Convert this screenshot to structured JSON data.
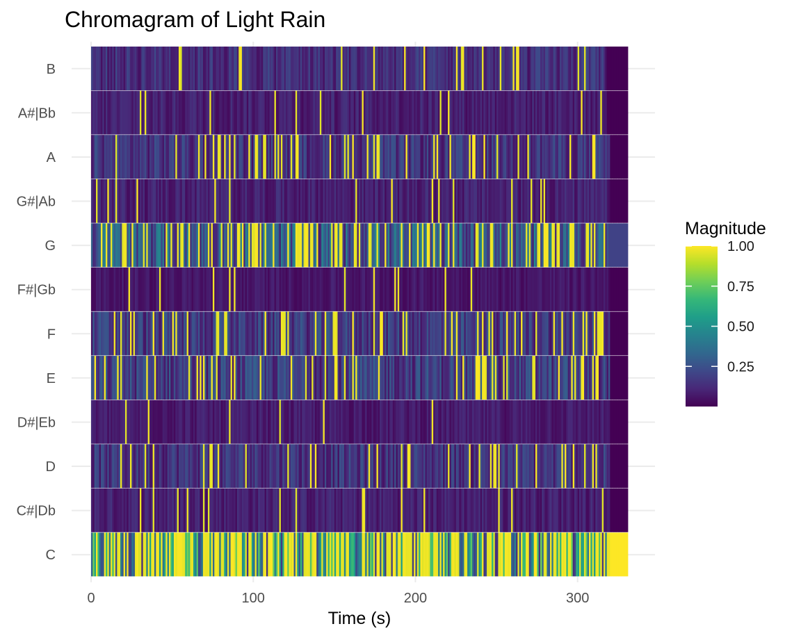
{
  "chart_data": {
    "type": "heatmap",
    "title": "Chromagram of Light Rain",
    "xlabel": "Time (s)",
    "ylabel": "",
    "xlim": [
      0,
      331
    ],
    "x_ticks": [
      0,
      100,
      200,
      300
    ],
    "y_categories": [
      "C",
      "C#|Db",
      "D",
      "D#|Eb",
      "E",
      "F",
      "F#|Gb",
      "G",
      "G#|Ab",
      "A",
      "A#|Bb",
      "B"
    ],
    "colorscale": "viridis",
    "grid": true,
    "legend": {
      "title": "Magnitude",
      "placement": "right",
      "range": [
        0.0,
        1.0
      ],
      "ticks": [
        0.25,
        0.5,
        0.75,
        1.0
      ],
      "tick_labels": [
        "0.25",
        "0.50",
        "0.75",
        "1.00"
      ]
    },
    "pitch_profiles": [
      {
        "pitch": "C",
        "mean_magnitude": 0.75,
        "bright_share": 0.55,
        "active_until": 320,
        "tail_value": 1.0
      },
      {
        "pitch": "C#|Db",
        "mean_magnitude": 0.15,
        "bright_share": 0.03,
        "active_until": 320,
        "tail_value": 0.0
      },
      {
        "pitch": "D",
        "mean_magnitude": 0.25,
        "bright_share": 0.12,
        "active_until": 320,
        "tail_value": 0.0
      },
      {
        "pitch": "D#|Eb",
        "mean_magnitude": 0.12,
        "bright_share": 0.02,
        "active_until": 320,
        "tail_value": 0.0
      },
      {
        "pitch": "E",
        "mean_magnitude": 0.3,
        "bright_share": 0.15,
        "active_until": 320,
        "tail_value": 0.0
      },
      {
        "pitch": "F",
        "mean_magnitude": 0.28,
        "bright_share": 0.14,
        "active_until": 320,
        "tail_value": 0.0
      },
      {
        "pitch": "F#|Gb",
        "mean_magnitude": 0.1,
        "bright_share": 0.02,
        "active_until": 320,
        "tail_value": 0.0
      },
      {
        "pitch": "G",
        "mean_magnitude": 0.45,
        "bright_share": 0.3,
        "active_until": 319,
        "tail_value": 0.2
      },
      {
        "pitch": "G#|Ab",
        "mean_magnitude": 0.15,
        "bright_share": 0.03,
        "active_until": 320,
        "tail_value": 0.0
      },
      {
        "pitch": "A",
        "mean_magnitude": 0.25,
        "bright_share": 0.13,
        "active_until": 320,
        "tail_value": 0.0
      },
      {
        "pitch": "A#|Bb",
        "mean_magnitude": 0.15,
        "bright_share": 0.03,
        "active_until": 318,
        "tail_value": 0.0
      },
      {
        "pitch": "B",
        "mean_magnitude": 0.22,
        "bright_share": 0.06,
        "active_until": 318,
        "tail_value": 0.0
      }
    ]
  }
}
